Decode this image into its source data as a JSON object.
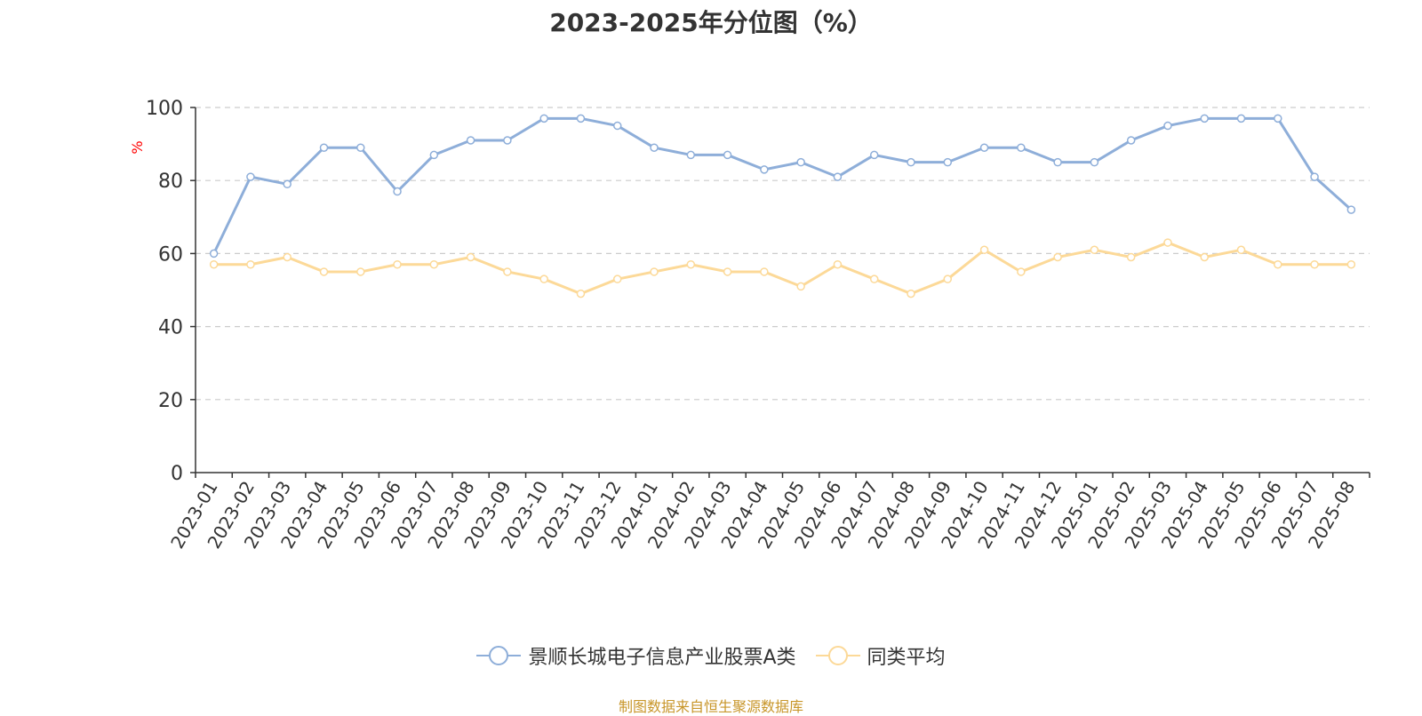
{
  "title": "2023-2025年分位图（%）",
  "source_note": "制图数据来自恒生聚源数据库",
  "colors": {
    "series1": "#8eaed9",
    "series2": "#fcd998",
    "axis": "#333333",
    "grid": "#cccccc",
    "ylabel": "#ff0000",
    "source": "#c8962a"
  },
  "chart_data": {
    "type": "line",
    "title": "2023-2025年分位图（%）",
    "ylabel": "%",
    "ylim": [
      0,
      100
    ],
    "yticks": [
      0,
      20,
      40,
      60,
      80,
      100
    ],
    "grid": true,
    "legend_position": "bottom",
    "x": [
      "2023-01",
      "2023-02",
      "2023-03",
      "2023-04",
      "2023-05",
      "2023-06",
      "2023-07",
      "2023-08",
      "2023-09",
      "2023-10",
      "2023-11",
      "2023-12",
      "2024-01",
      "2024-02",
      "2024-03",
      "2024-04",
      "2024-05",
      "2024-06",
      "2024-07",
      "2024-08",
      "2024-09",
      "2024-10",
      "2024-11",
      "2024-12",
      "2025-01",
      "2025-02",
      "2025-03",
      "2025-04",
      "2025-05",
      "2025-06",
      "2025-07",
      "2025-08"
    ],
    "series": [
      {
        "name": "景顺长城电子信息产业股票A类",
        "values": [
          60,
          81,
          79,
          89,
          89,
          77,
          87,
          91,
          91,
          97,
          97,
          95,
          89,
          87,
          87,
          83,
          85,
          81,
          87,
          85,
          85,
          89,
          89,
          85,
          85,
          91,
          95,
          97,
          97,
          97,
          81,
          72
        ]
      },
      {
        "name": "同类平均",
        "values": [
          57,
          57,
          59,
          55,
          55,
          57,
          57,
          59,
          55,
          53,
          49,
          53,
          55,
          57,
          55,
          55,
          51,
          57,
          53,
          49,
          53,
          61,
          55,
          59,
          61,
          59,
          63,
          59,
          61,
          57,
          57,
          57
        ]
      }
    ]
  }
}
